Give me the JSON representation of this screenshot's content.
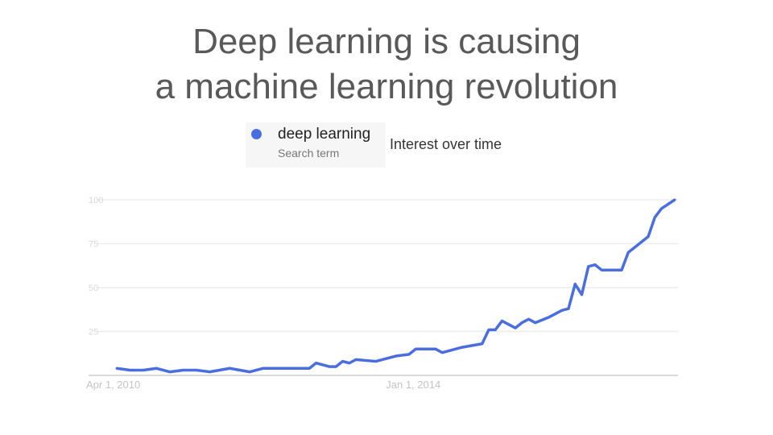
{
  "slide": {
    "title_line1": "Deep learning is causing",
    "title_line2": "a machine learning revolution"
  },
  "legend": {
    "term": "deep learning",
    "term_type": "Search term",
    "panel_title": "Interest over time",
    "dot_icon": "circle-icon"
  },
  "chart_data": {
    "type": "line",
    "title": "Interest over time",
    "series": [
      {
        "name": "deep learning",
        "color": "#4a6ee0",
        "x": [
          "2010-04",
          "2010-06",
          "2010-08",
          "2010-10",
          "2010-12",
          "2011-02",
          "2011-04",
          "2011-06",
          "2011-09",
          "2011-12",
          "2012-02",
          "2012-06",
          "2012-09",
          "2012-10",
          "2012-12",
          "2013-01",
          "2013-02",
          "2013-03",
          "2013-04",
          "2013-07",
          "2013-10",
          "2013-12",
          "2014-01",
          "2014-04",
          "2014-05",
          "2014-08",
          "2014-11",
          "2014-12",
          "2015-01",
          "2015-02",
          "2015-04",
          "2015-05",
          "2015-06",
          "2015-07",
          "2015-09",
          "2015-11",
          "2015-12",
          "2016-01",
          "2016-02",
          "2016-03",
          "2016-04",
          "2016-05",
          "2016-08",
          "2016-09",
          "2016-10",
          "2016-12",
          "2017-01",
          "2017-02",
          "2017-04"
        ],
        "values": [
          4,
          3,
          3,
          4,
          2,
          3,
          3,
          2,
          4,
          2,
          4,
          4,
          4,
          7,
          5,
          5,
          8,
          7,
          9,
          8,
          11,
          12,
          15,
          15,
          13,
          16,
          18,
          26,
          26,
          31,
          27,
          30,
          32,
          30,
          33,
          37,
          38,
          52,
          46,
          62,
          63,
          60,
          60,
          70,
          73,
          79,
          90,
          95,
          100
        ]
      }
    ],
    "xlim": [
      "2010-04",
      "2017-04"
    ],
    "x_tick_labels": [
      "Apr 1, 2010",
      "Jan 1, 2014"
    ],
    "x_tick_dates": [
      "2010-04",
      "2014-01"
    ],
    "ylim": [
      0,
      100
    ],
    "y_tick_labels": [
      "100",
      "75",
      "50",
      "25"
    ],
    "y_tick_values": [
      100,
      75,
      50,
      25
    ],
    "grid": true,
    "legend_placement": "top"
  }
}
